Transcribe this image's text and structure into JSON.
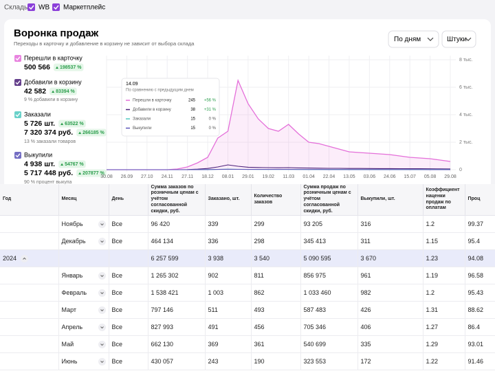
{
  "header": {
    "warehouses_label": "Склады:",
    "warehouses": [
      "WB",
      "Маркетплейс"
    ]
  },
  "funnel": {
    "title": "Воронка продаж",
    "subtitle": "Переходы в карточку и добавление в корзину не зависит от выбора склада",
    "period_select": "По дням",
    "unit_select": "Штуки",
    "metrics": [
      {
        "label": "Перешли в карточку",
        "value": "500 566",
        "change": "198537 %"
      },
      {
        "label": "Добавили в корзину",
        "value": "42 582",
        "change": "83394 %",
        "note": "9 % добавили в корзину"
      },
      {
        "label": "Заказали",
        "value": "5 726 шт.",
        "change": "63522 %",
        "value2": "7 320 374 руб.",
        "change2": "266185 %",
        "note": "13 % заказали товаров"
      },
      {
        "label": "Выкупили",
        "value": "4 938 шт.",
        "change": "54767 %",
        "value2": "5 717 448 руб.",
        "change2": "207877 %",
        "note": "90 % процент выкупа"
      }
    ]
  },
  "chart_data": {
    "type": "line",
    "x": [
      "30.08",
      null,
      "26.09",
      null,
      "27.10",
      null,
      "24.11",
      null,
      "27.11",
      null,
      "18.12",
      null,
      "08.01",
      null,
      "29.01",
      null,
      "19.02",
      null,
      "11.03",
      null,
      "01.04",
      null,
      "22.04",
      null,
      "13.05",
      null,
      "03.06",
      null,
      "24.06",
      null,
      "15.07",
      null,
      "05.08",
      null,
      "29.08"
    ],
    "ylim": [
      0,
      8000
    ],
    "yticks": [
      0,
      {
        "value": 2000,
        "label": "2 тыс."
      },
      {
        "value": 4000,
        "label": "4 тыс."
      },
      {
        "value": 6000,
        "label": "6 тыс."
      },
      {
        "value": 8000,
        "label": "8 тыс."
      }
    ],
    "grid": true,
    "series": [
      {
        "name": "Перешли в карточку",
        "color": "#e46fd9",
        "values": [
          0,
          0,
          0,
          0,
          0,
          0,
          0,
          50,
          200,
          500,
          900,
          2300,
          2800,
          6500,
          4800,
          3700,
          3000,
          2800,
          3300,
          2600,
          2000,
          1900,
          1700,
          1500,
          1300,
          1250,
          1200,
          1150,
          1100,
          1000,
          900,
          850,
          800,
          700,
          600
        ]
      },
      {
        "name": "Добавили в корзину",
        "color": "#4a1f78",
        "values": [
          0,
          0,
          0,
          0,
          0,
          0,
          0,
          0,
          10,
          40,
          90,
          200,
          350,
          250,
          180,
          160,
          150,
          140,
          150,
          130,
          120,
          110,
          100,
          100,
          90,
          90,
          85,
          80,
          80,
          75,
          70,
          70,
          65,
          60,
          55
        ]
      },
      {
        "name": "Заказали",
        "color": "#4fc9c0",
        "values": [
          0,
          0,
          0,
          0,
          0,
          0,
          0,
          0,
          2,
          5,
          12,
          25,
          40,
          30,
          25,
          22,
          20,
          20,
          22,
          18,
          16,
          15,
          14,
          13,
          12,
          12,
          11,
          10,
          10,
          10,
          9,
          9,
          8,
          8,
          8
        ]
      },
      {
        "name": "Выкупили",
        "color": "#5c55b8",
        "values": [
          0,
          0,
          0,
          0,
          0,
          0,
          0,
          0,
          1,
          4,
          10,
          20,
          32,
          26,
          22,
          20,
          18,
          18,
          20,
          16,
          14,
          13,
          12,
          12,
          11,
          11,
          10,
          9,
          9,
          9,
          8,
          8,
          7,
          7,
          7
        ]
      }
    ]
  },
  "tooltip": {
    "date": "14.09",
    "caption": "По сравнению с предыдущим днем",
    "rows": [
      {
        "name": "Перешли в карточку",
        "value": "245",
        "change": "+56 %"
      },
      {
        "name": "Добавили в корзину",
        "value": "38",
        "change": "+31 %"
      },
      {
        "name": "Заказали",
        "value": "15",
        "change": "0 %"
      },
      {
        "name": "Выкупили",
        "value": "15",
        "change": "0 %"
      }
    ]
  },
  "table": {
    "columns": [
      "Год",
      "Месяц",
      "День",
      "Сумма заказов по розничным ценам с учётом согласованной скидки, руб.",
      "Заказано, шт.",
      "Количество заказов",
      "Сумма продаж по розничным ценам с учётом согласованной скидки, руб.",
      "Выкупили, шт.",
      "Коэффициент наценки продаж по оплатам",
      "Проц"
    ],
    "rows": [
      {
        "month": "Ноябрь",
        "day": "Все",
        "orders_sum": "96 420",
        "ordered_qty": "339",
        "orders_count": "299",
        "sales_sum": "93 205",
        "bought": "316",
        "markup": "1.2",
        "percent": "99.37"
      },
      {
        "month": "Декабрь",
        "day": "Все",
        "orders_sum": "464 134",
        "ordered_qty": "336",
        "orders_count": "298",
        "sales_sum": "345 413",
        "bought": "311",
        "markup": "1.15",
        "percent": "95.4"
      },
      {
        "year": "2024",
        "orders_sum": "6 257 599",
        "ordered_qty": "3 938",
        "orders_count": "3 540",
        "sales_sum": "5 090 595",
        "bought": "3 670",
        "markup": "1.23",
        "percent": "94.08"
      },
      {
        "month": "Январь",
        "day": "Все",
        "orders_sum": "1 265 302",
        "ordered_qty": "902",
        "orders_count": "811",
        "sales_sum": "856 975",
        "bought": "961",
        "markup": "1.19",
        "percent": "96.58"
      },
      {
        "month": "Февраль",
        "day": "Все",
        "orders_sum": "1 538 421",
        "ordered_qty": "1 003",
        "orders_count": "862",
        "sales_sum": "1 033 460",
        "bought": "982",
        "markup": "1.2",
        "percent": "95.43"
      },
      {
        "month": "Март",
        "day": "Все",
        "orders_sum": "797 146",
        "ordered_qty": "511",
        "orders_count": "493",
        "sales_sum": "587 483",
        "bought": "426",
        "markup": "1.31",
        "percent": "88.62"
      },
      {
        "month": "Апрель",
        "day": "Все",
        "orders_sum": "827 993",
        "ordered_qty": "491",
        "orders_count": "456",
        "sales_sum": "705 346",
        "bought": "406",
        "markup": "1.27",
        "percent": "86.4"
      },
      {
        "month": "Май",
        "day": "Все",
        "orders_sum": "662 130",
        "ordered_qty": "369",
        "orders_count": "361",
        "sales_sum": "540 699",
        "bought": "335",
        "markup": "1.29",
        "percent": "93.01"
      },
      {
        "month": "Июнь",
        "day": "Все",
        "orders_sum": "430 057",
        "ordered_qty": "243",
        "orders_count": "190",
        "sales_sum": "323 553",
        "bought": "172",
        "markup": "1.22",
        "percent": "91.46"
      }
    ]
  }
}
